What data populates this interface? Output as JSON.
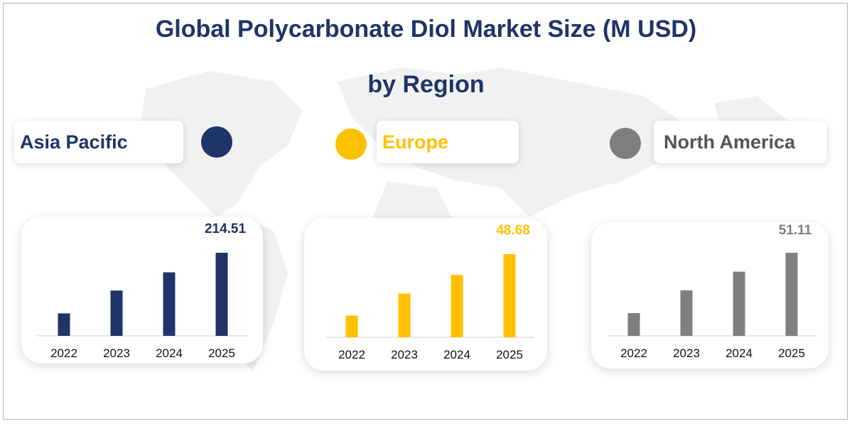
{
  "title_line1": "Global Polycarbonate Diol Market Size (M USD)",
  "title_line2": "by Region",
  "colors": {
    "title": "#1f3468",
    "asia": "#1f3468",
    "europe": "#ffc000",
    "north_america": "#7f7f7f"
  },
  "regions": [
    {
      "name": "Asia Pacific",
      "color": "#1f3468"
    },
    {
      "name": "Europe",
      "color": "#ffc000"
    },
    {
      "name": "North America",
      "color": "#7f7f7f"
    }
  ],
  "chart_data": [
    {
      "type": "bar",
      "categories": [
        "2022",
        "2023",
        "2024",
        "2025"
      ],
      "series": [
        {
          "name": "Asia Pacific",
          "values": [
            58,
            117,
            164,
            214.51
          ]
        }
      ],
      "data_labels": [
        "",
        "",
        "",
        "214.51"
      ],
      "ylim": [
        0,
        214.51
      ]
    },
    {
      "type": "bar",
      "categories": [
        "2022",
        "2023",
        "2024",
        "2025"
      ],
      "series": [
        {
          "name": "Europe",
          "values": [
            12.7,
            25.6,
            36.5,
            48.68
          ]
        }
      ],
      "data_labels": [
        "",
        "",
        "",
        "48.68"
      ],
      "ylim": [
        0,
        48.68
      ]
    },
    {
      "type": "bar",
      "categories": [
        "2022",
        "2023",
        "2024",
        "2025"
      ],
      "series": [
        {
          "name": "North America",
          "values": [
            14,
            28,
            39.5,
            51.11
          ]
        }
      ],
      "data_labels": [
        "",
        "",
        "",
        "51.11"
      ],
      "ylim": [
        0,
        51.11
      ]
    }
  ]
}
